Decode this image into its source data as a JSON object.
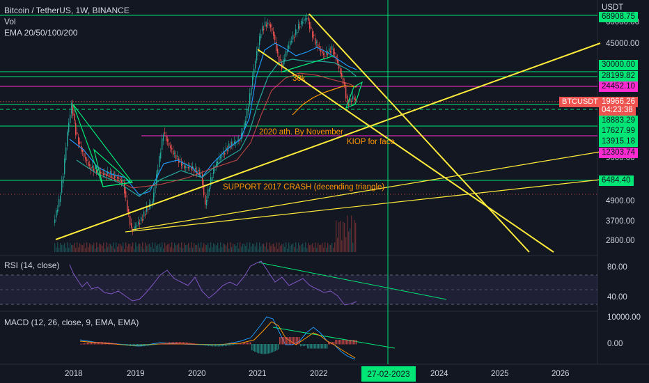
{
  "header": {
    "symbol_line": "Bitcoin / TetherUS, 1W, BINANCE",
    "vol_label": "Vol",
    "ema_label": "EMA 20/50/100/200"
  },
  "axis": {
    "currency": "USDT",
    "price_ticks": [
      "60000.00",
      "45000.00",
      "9000.00",
      "4900.00",
      "3700.00",
      "2800.00"
    ],
    "time_ticks": [
      "2018",
      "2019",
      "2020",
      "2021",
      "2022",
      "2024",
      "2025",
      "2026"
    ],
    "cursor_date": "27-02-2023"
  },
  "price_tags": [
    {
      "value": "68908.75",
      "color": "#00e676"
    },
    {
      "value": "30000.00",
      "color": "#00e676"
    },
    {
      "value": "28199.82",
      "color": "#00e676"
    },
    {
      "value": "24452.10",
      "color": "#ff2ad0"
    },
    {
      "value": "19966.26",
      "color": "#ef5350"
    },
    {
      "value": "04:23:38",
      "color": "#ef5350"
    },
    {
      "value": "18883.29",
      "color": "#00e676"
    },
    {
      "value": "17627.99",
      "color": "#00e676"
    },
    {
      "value": "13915.18",
      "color": "#00e676"
    },
    {
      "value": "12303.74",
      "color": "#ff2ad0"
    },
    {
      "value": "6484.40",
      "color": "#00e676"
    }
  ],
  "symbol_tag": "BTCUSDT",
  "annotations": {
    "a30k": "30k",
    "ath": "2020 ath. By November",
    "kiop": "KIOP for face",
    "support": "SUPPORT 2017 CRASH (decending triangle)"
  },
  "rsi": {
    "label": "RSI (14, close)",
    "ticks": [
      "80.00",
      "40.00"
    ]
  },
  "macd": {
    "label": "MACD (12, 26, close, 9, EMA, EMA)",
    "ticks": [
      "10000.00",
      "0.00"
    ]
  },
  "colors": {
    "background": "#131722",
    "green_lines": "#00e676",
    "magenta_lines": "#ff2ad0",
    "yellow_lines": "#ffeb3b",
    "up_candle": "#26a69a",
    "down_candle": "#ef5350",
    "rsi_line": "#7e57c2",
    "annotation_orange": "#ff9800"
  }
}
